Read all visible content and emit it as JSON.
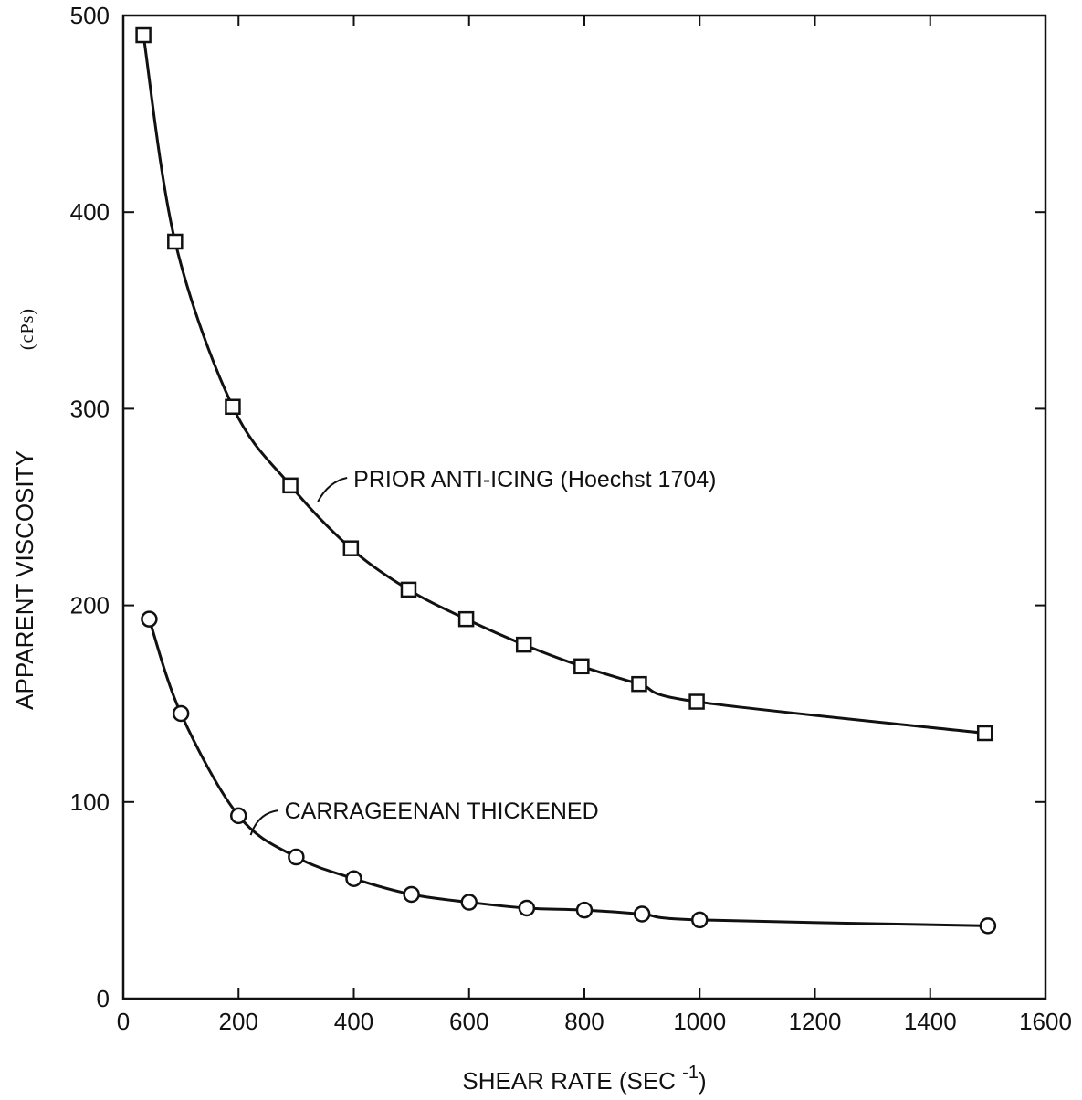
{
  "chart_data": {
    "type": "line",
    "title": "",
    "xlabel": "SHEAR RATE (SEC",
    "xlabel_superscript": "-1",
    "xlabel_close": ")",
    "ylabel": "APPARENT VISCOSITY",
    "ylabel_unit": "(cPs)",
    "xlim": [
      0,
      1600
    ],
    "ylim": [
      0,
      500
    ],
    "xticks": [
      0,
      200,
      400,
      600,
      800,
      1000,
      1200,
      1400,
      1600
    ],
    "yticks": [
      0,
      100,
      200,
      300,
      400,
      500
    ],
    "grid": false,
    "series": [
      {
        "name": "PRIOR ANTI-ICING (Hoechst 1704)",
        "marker": "square",
        "x": [
          35,
          90,
          190,
          290,
          395,
          495,
          595,
          695,
          795,
          895,
          995,
          1495
        ],
        "y": [
          490,
          385,
          301,
          261,
          229,
          208,
          193,
          180,
          169,
          160,
          151,
          135
        ]
      },
      {
        "name": "CARRAGEENAN THICKENED",
        "marker": "circle",
        "x": [
          45,
          100,
          200,
          300,
          400,
          500,
          600,
          700,
          800,
          900,
          1000,
          1500
        ],
        "y": [
          193,
          145,
          93,
          72,
          61,
          53,
          49,
          46,
          45,
          43,
          40,
          37
        ]
      }
    ],
    "annotations": [
      {
        "text": "PRIOR ANTI-ICING (Hoechst 1704)",
        "series": 0
      },
      {
        "text": "CARRAGEENAN THICKENED",
        "series": 1
      }
    ]
  }
}
